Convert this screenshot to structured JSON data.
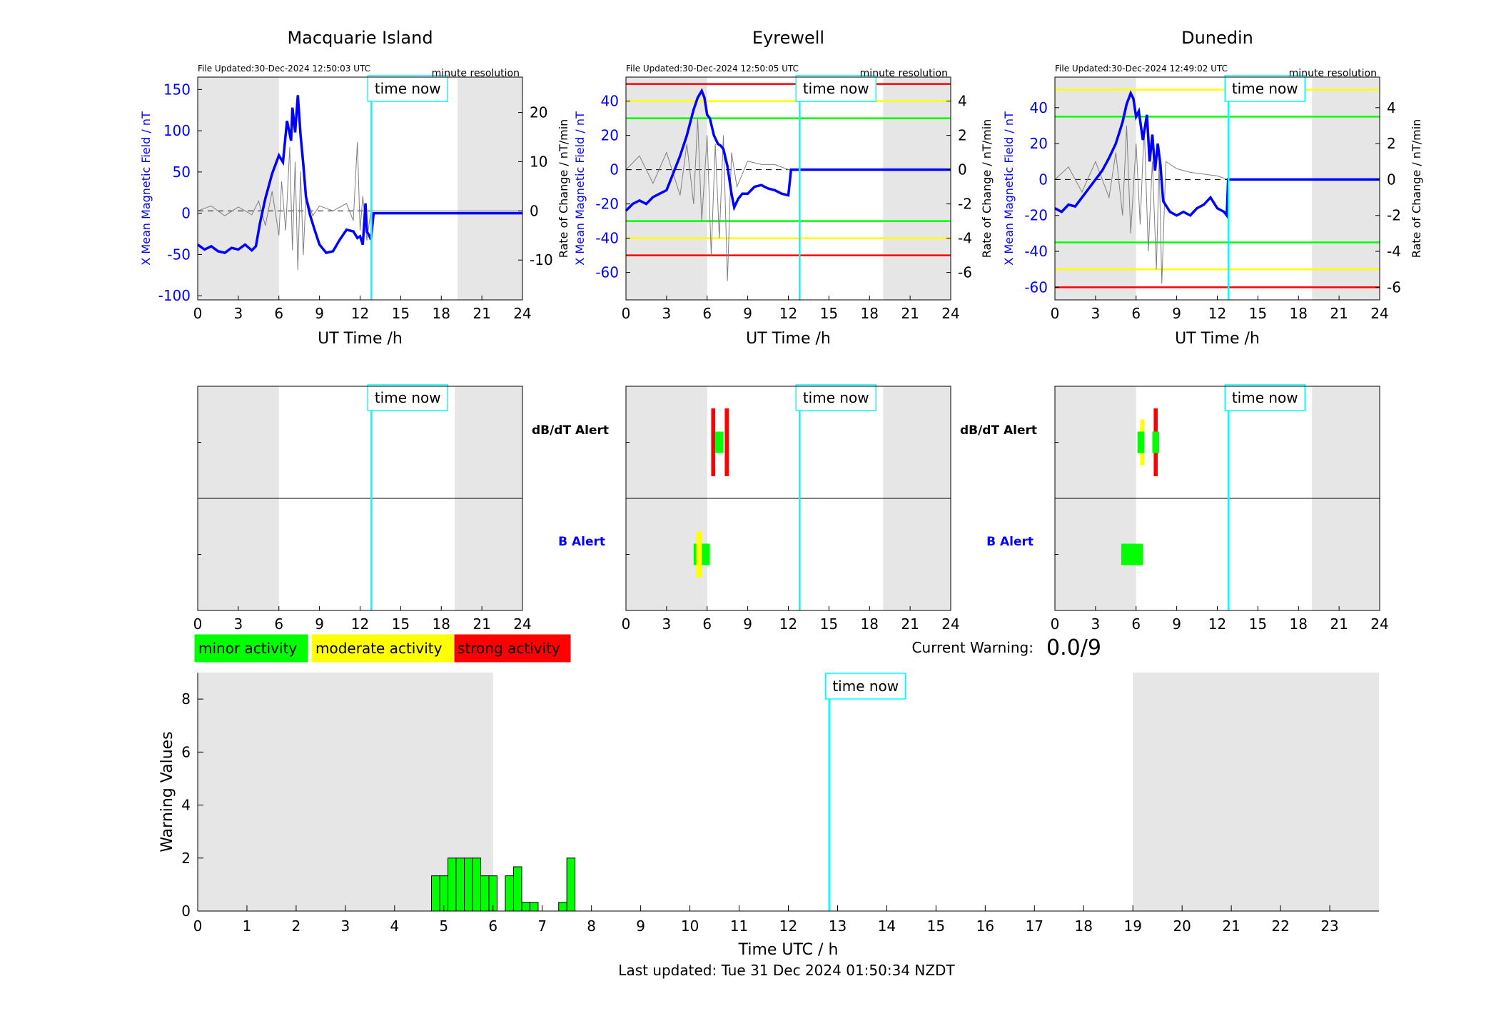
{
  "figure": {
    "last_updated": "Last updated: Tue 31 Dec 2024 01:50:34 NZDT",
    "time_now_label": "time now",
    "time_now_hour": 12.83,
    "minute_resolution_label": "minute resolution",
    "current_warning_label": "Current Warning:",
    "current_warning_value": "0.0/9",
    "legend": [
      {
        "label": "minor activity",
        "color": "#00ff00"
      },
      {
        "label": "moderate activity",
        "color": "#ffff00"
      },
      {
        "label": "strong activity",
        "color": "#ff0000"
      }
    ],
    "colors": {
      "field_line": "#0000ff",
      "rate_line": "#808080",
      "time_now": "#00ffff",
      "night_shade": "#e6e6e6"
    }
  },
  "chart_data": [
    {
      "type": "line",
      "station": "Macquarie Island",
      "title": "Macquarie Island",
      "file_updated": "File Updated:30-Dec-2024 12:50:03 UTC",
      "xlabel": "UT Time /h",
      "ylabel_left": "X Mean Magnetic Field / nT",
      "ylabel_right": "Rate of Change / nT/min",
      "xlim": [
        0,
        24
      ],
      "ylim_left": [
        -105,
        165
      ],
      "ylim_right": [
        -18.1,
        27.2
      ],
      "xticks": [
        0,
        3,
        6,
        9,
        12,
        15,
        18,
        21,
        24
      ],
      "yticks_left": [
        -100,
        -50,
        0,
        50,
        100,
        150
      ],
      "yticks_right": [
        -10,
        0,
        10,
        20
      ],
      "night_shading": [
        [
          0,
          6
        ],
        [
          19.2,
          24
        ]
      ],
      "threshold_lines": [],
      "series": [
        {
          "name": "X Mean Magnetic Field",
          "axis": "left",
          "x": [
            0,
            0.5,
            1,
            1.5,
            2,
            2.5,
            3,
            3.5,
            4,
            4.3,
            4.6,
            5,
            5.5,
            6,
            6.3,
            6.6,
            6.9,
            7.0,
            7.2,
            7.4,
            7.6,
            7.8,
            8.0,
            8.3,
            8.6,
            9,
            9.5,
            10,
            10.5,
            11,
            11.5,
            11.8,
            12.0,
            12.2,
            12.4,
            12.5,
            12.7,
            12.8,
            13,
            24
          ],
          "y": [
            -38,
            -44,
            -40,
            -46,
            -48,
            -42,
            -44,
            -38,
            -45,
            -40,
            -12,
            18,
            48,
            70,
            62,
            112,
            88,
            128,
            98,
            143,
            95,
            60,
            20,
            -2,
            -18,
            -38,
            -48,
            -46,
            -32,
            -20,
            -22,
            -30,
            -28,
            -38,
            12,
            -22,
            -28,
            -32,
            0,
            0
          ]
        },
        {
          "name": "Rate of Change",
          "axis": "right",
          "x": [
            0,
            1,
            2,
            3,
            4,
            4.5,
            5,
            5.5,
            6,
            6.2,
            6.5,
            6.8,
            7.0,
            7.2,
            7.4,
            7.6,
            7.8,
            8.0,
            8.5,
            9,
            10,
            11,
            11.5,
            11.8,
            12.0,
            12.2,
            12.5,
            12.8,
            13,
            24
          ],
          "y": [
            0,
            1,
            -1,
            0.8,
            -0.8,
            2,
            -3,
            4,
            -5,
            6,
            -4,
            13,
            -8,
            10,
            -12,
            8,
            -9,
            3,
            -1,
            1,
            0,
            1.5,
            -2,
            14,
            -4,
            3,
            -6,
            0,
            0,
            0
          ]
        }
      ]
    },
    {
      "type": "line",
      "station": "Eyrewell",
      "title": "Eyrewell",
      "file_updated": "File Updated:30-Dec-2024 12:50:05 UTC",
      "xlabel": "UT Time /h",
      "ylabel_left": "X Mean Magnetic Field / nT",
      "ylabel_right": "Rate of Change / nT/min",
      "xlim": [
        0,
        24
      ],
      "ylim_left": [
        -76,
        54
      ],
      "ylim_right": [
        -7.6,
        5.4
      ],
      "xticks": [
        0,
        3,
        6,
        9,
        12,
        15,
        18,
        21,
        24
      ],
      "yticks_left": [
        -60,
        -40,
        -20,
        0,
        20,
        40
      ],
      "yticks_right": [
        -6,
        -4,
        -2,
        0,
        2,
        4
      ],
      "night_shading": [
        [
          0,
          6
        ],
        [
          19,
          24
        ]
      ],
      "threshold_lines": [
        {
          "y": 50,
          "color": "#ff0000"
        },
        {
          "y": -50,
          "color": "#ff0000"
        },
        {
          "y": 40,
          "color": "#ffff00"
        },
        {
          "y": -40,
          "color": "#ffff00"
        },
        {
          "y": 30,
          "color": "#00ff00"
        },
        {
          "y": -30,
          "color": "#00ff00"
        }
      ],
      "series": [
        {
          "name": "X Mean Magnetic Field",
          "axis": "left",
          "x": [
            0,
            0.5,
            1,
            1.5,
            2,
            2.5,
            3,
            3.5,
            4,
            4.5,
            5,
            5.3,
            5.6,
            5.8,
            6.0,
            6.2,
            6.5,
            6.8,
            7.0,
            7.2,
            7.5,
            7.8,
            8.0,
            8.3,
            8.6,
            9,
            9.5,
            10,
            10.5,
            11,
            11.5,
            12,
            12.2,
            12.5,
            24
          ],
          "y": [
            -24,
            -20,
            -18,
            -20,
            -16,
            -14,
            -12,
            -2,
            8,
            20,
            35,
            42,
            46,
            42,
            32,
            30,
            20,
            15,
            14,
            12,
            2,
            -14,
            -22,
            -17,
            -14,
            -14,
            -10,
            -9,
            -11,
            -12,
            -14,
            -15,
            0,
            0,
            0
          ]
        },
        {
          "name": "Rate of Change",
          "axis": "right",
          "x": [
            0,
            1,
            2,
            3,
            4,
            4.5,
            5,
            5.3,
            5.6,
            6.0,
            6.3,
            6.6,
            6.9,
            7.2,
            7.5,
            7.8,
            8.2,
            9,
            10,
            11,
            12,
            12.2,
            24
          ],
          "y": [
            0,
            0.8,
            -0.8,
            1,
            -1.5,
            1.5,
            -2,
            3,
            -3,
            2,
            -5,
            1.5,
            -4,
            2,
            -6.5,
            1,
            -1,
            0.5,
            0.3,
            0.3,
            0,
            0,
            0
          ]
        }
      ]
    },
    {
      "type": "line",
      "station": "Dunedin",
      "title": "Dunedin",
      "file_updated": "File Updated:30-Dec-2024 12:49:02 UTC",
      "xlabel": "UT Time /h",
      "ylabel_left": "X Mean Magnetic Field / nT",
      "ylabel_right": "Rate of Change / nT/min",
      "xlim": [
        0,
        24
      ],
      "ylim_left": [
        -67,
        57
      ],
      "ylim_right": [
        -6.7,
        5.7
      ],
      "xticks": [
        0,
        3,
        6,
        9,
        12,
        15,
        18,
        21,
        24
      ],
      "yticks_left": [
        -60,
        -40,
        -20,
        0,
        20,
        40
      ],
      "yticks_right": [
        -6,
        -4,
        -2,
        0,
        2,
        4
      ],
      "night_shading": [
        [
          0,
          6
        ],
        [
          19,
          24
        ]
      ],
      "threshold_lines": [
        {
          "y": -60,
          "color": "#ff0000"
        },
        {
          "y": 50,
          "color": "#ffff00"
        },
        {
          "y": -50,
          "color": "#ffff00"
        },
        {
          "y": 35,
          "color": "#00ff00"
        },
        {
          "y": -35,
          "color": "#00ff00"
        }
      ],
      "series": [
        {
          "name": "X Mean Magnetic Field",
          "axis": "left",
          "x": [
            0,
            0.5,
            1,
            1.5,
            2,
            2.5,
            3,
            3.5,
            4,
            4.5,
            5,
            5.3,
            5.6,
            5.8,
            6.0,
            6.2,
            6.5,
            6.8,
            7.0,
            7.2,
            7.4,
            7.6,
            7.8,
            8.0,
            8.5,
            9,
            9.5,
            10,
            10.5,
            11,
            11.5,
            12,
            12.5,
            12.7,
            12.8,
            13,
            24
          ],
          "y": [
            -16,
            -18,
            -14,
            -15,
            -10,
            -5,
            0,
            5,
            12,
            20,
            32,
            42,
            48,
            45,
            35,
            38,
            22,
            36,
            10,
            25,
            5,
            20,
            8,
            -12,
            -18,
            -20,
            -18,
            -20,
            -16,
            -14,
            -10,
            -16,
            -18,
            -20,
            0,
            0,
            0
          ]
        },
        {
          "name": "Rate of Change",
          "axis": "right",
          "x": [
            0,
            1,
            2,
            3,
            4,
            4.5,
            5,
            5.3,
            5.6,
            6.0,
            6.3,
            6.6,
            6.9,
            7.2,
            7.5,
            7.7,
            7.9,
            8.2,
            9,
            10,
            11,
            12,
            12.8,
            24
          ],
          "y": [
            0,
            0.7,
            -0.7,
            1,
            -1,
            1.5,
            -2,
            3,
            -3,
            2,
            -2.5,
            3,
            -4,
            1,
            -5,
            1,
            -5.8,
            1,
            0.6,
            0.4,
            0.3,
            0.2,
            0,
            0
          ]
        }
      ]
    },
    {
      "type": "table",
      "station": "Macquarie Island",
      "kind": "alert",
      "xlim": [
        0,
        24
      ],
      "xticks": [
        0,
        3,
        6,
        9,
        12,
        15,
        18,
        21,
        24
      ],
      "rows": [
        "dB/dT Alert",
        "B Alert"
      ],
      "night_shading": [
        [
          0,
          6
        ],
        [
          19,
          24
        ]
      ],
      "dbdt_alerts": [],
      "b_alerts": []
    },
    {
      "type": "table",
      "station": "Eyrewell",
      "kind": "alert",
      "xlim": [
        0,
        24
      ],
      "xticks": [
        0,
        3,
        6,
        9,
        12,
        15,
        18,
        21,
        24
      ],
      "rows": [
        "dB/dT Alert",
        "B Alert"
      ],
      "night_shading": [
        [
          0,
          6
        ],
        [
          19,
          24
        ]
      ],
      "dbdt_alerts": [
        {
          "x0": 6.3,
          "x1": 6.6,
          "level": 3
        },
        {
          "x0": 6.6,
          "x1": 7.0,
          "level": 1
        },
        {
          "x0": 7.3,
          "x1": 7.6,
          "level": 3
        },
        {
          "x0": 7.0,
          "x1": 7.2,
          "level": 1
        }
      ],
      "b_alerts": [
        {
          "x0": 5.0,
          "x1": 5.2,
          "level": 1
        },
        {
          "x0": 5.2,
          "x1": 5.6,
          "level": 2
        },
        {
          "x0": 5.6,
          "x1": 6.2,
          "level": 1
        }
      ]
    },
    {
      "type": "table",
      "station": "Dunedin",
      "kind": "alert",
      "xlim": [
        0,
        24
      ],
      "xticks": [
        0,
        3,
        6,
        9,
        12,
        15,
        18,
        21,
        24
      ],
      "rows": [
        "dB/dT Alert",
        "B Alert"
      ],
      "night_shading": [
        [
          0,
          6
        ],
        [
          19,
          24
        ]
      ],
      "dbdt_alerts": [
        {
          "x0": 6.3,
          "x1": 6.6,
          "level": 2
        },
        {
          "x0": 6.1,
          "x1": 6.6,
          "level": 1
        },
        {
          "x0": 7.3,
          "x1": 7.6,
          "level": 3
        },
        {
          "x0": 7.2,
          "x1": 7.7,
          "level": 1
        }
      ],
      "b_alerts": [
        {
          "x0": 4.9,
          "x1": 6.5,
          "level": 1
        }
      ]
    },
    {
      "type": "bar",
      "title": "",
      "xlabel": "Time UTC / h",
      "ylabel": "Warning Values",
      "xlim": [
        0,
        24
      ],
      "ylim": [
        0,
        9
      ],
      "xticks": [
        0,
        1,
        2,
        3,
        4,
        5,
        6,
        7,
        8,
        9,
        10,
        11,
        12,
        13,
        14,
        15,
        16,
        17,
        18,
        19,
        20,
        21,
        22,
        23
      ],
      "yticks": [
        0,
        2,
        4,
        6,
        8
      ],
      "night_shading": [
        [
          0,
          6
        ],
        [
          19,
          24
        ]
      ],
      "bar_width_h": 0.1667,
      "x": [
        4.833,
        5.0,
        5.167,
        5.333,
        5.5,
        5.667,
        5.833,
        6.0,
        6.333,
        6.5,
        6.667,
        6.833,
        7.417,
        7.583
      ],
      "values": [
        1.33,
        1.33,
        2,
        2,
        2,
        2,
        1.33,
        1.33,
        1.33,
        1.67,
        0.33,
        0.33,
        0.33,
        2
      ]
    }
  ]
}
